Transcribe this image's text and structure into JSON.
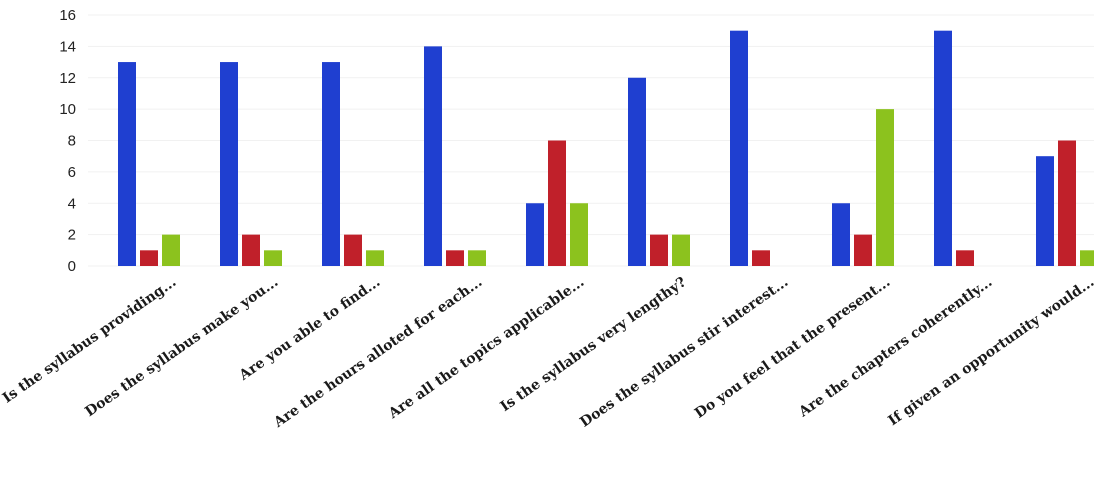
{
  "chart_data": {
    "type": "bar",
    "categories": [
      "Is the syllabus providing...",
      "Does the syllabus make you...",
      "Are you able to find...",
      "Are the hours alloted for each...",
      "Are all the topics applicable...",
      "Is the syllabus very lengthy?",
      "Does the syllabus stir interest...",
      "Do you feel that the present...",
      "Are the chapters coherently...",
      "If given an opportunity would..."
    ],
    "series": [
      {
        "values": [
          13,
          13,
          13,
          14,
          4,
          12,
          15,
          4,
          15,
          7
        ],
        "color": "#1f3fd0"
      },
      {
        "values": [
          1,
          2,
          2,
          1,
          8,
          2,
          1,
          2,
          1,
          8
        ],
        "color": "#c0202a"
      },
      {
        "values": [
          2,
          1,
          1,
          1,
          4,
          2,
          0,
          10,
          0,
          1
        ],
        "color": "#8cc21e"
      }
    ],
    "ylim": [
      0,
      16
    ],
    "yticks": [
      "0",
      "2",
      "4",
      "6",
      "8",
      "10",
      "12",
      "14",
      "16"
    ],
    "grid": true,
    "legend": "none"
  }
}
